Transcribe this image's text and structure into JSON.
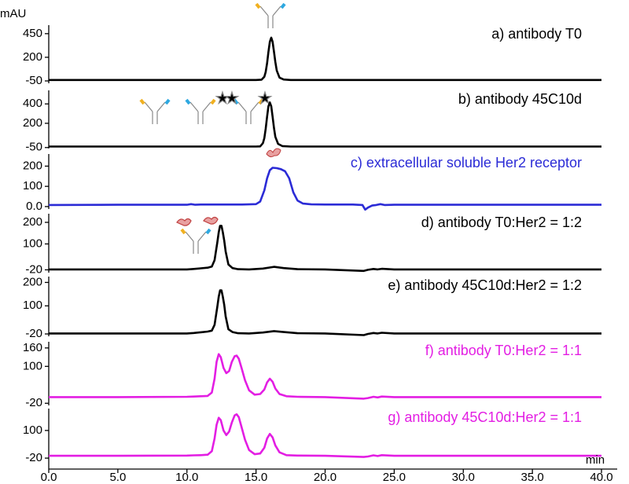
{
  "chart_data": [
    {
      "type": "line",
      "title": "a) antibody T0",
      "ylabel": "mAU",
      "color": "#000000",
      "ylim": [
        -75,
        540
      ],
      "yticks": [
        -50,
        200,
        450
      ],
      "x": [
        0,
        5,
        10,
        14,
        15,
        15.4,
        15.6,
        15.7,
        15.8,
        15.9,
        16.0,
        16.1,
        16.2,
        16.3,
        16.4,
        16.5,
        16.7,
        17,
        17.5,
        20,
        25,
        30,
        35,
        40
      ],
      "values": [
        -40,
        -40,
        -40,
        -40,
        -40,
        -37,
        -6,
        45,
        137,
        257,
        364,
        408,
        364,
        257,
        150,
        60,
        -15,
        -35,
        -40,
        -40,
        -40,
        -40,
        -40,
        -40
      ]
    },
    {
      "type": "line",
      "title": "b) antibody 45C10d",
      "color": "#000000",
      "ylim": [
        -60,
        540
      ],
      "yticks": [
        -50,
        200,
        400
      ],
      "x": [
        0,
        5,
        10,
        14,
        15,
        15.3,
        15.5,
        15.6,
        15.7,
        15.8,
        15.9,
        16.0,
        16.1,
        16.2,
        16.3,
        16.4,
        16.6,
        16.9,
        17.5,
        20,
        25,
        30,
        35,
        40
      ],
      "values": [
        -40,
        -40,
        -40,
        -40,
        -40,
        -38,
        -5,
        47,
        143,
        268,
        375,
        415,
        375,
        268,
        150,
        60,
        -12,
        -35,
        -40,
        -40,
        -40,
        -40,
        -40,
        -40
      ]
    },
    {
      "type": "line",
      "title": "c) extracellular soluble Her2 receptor",
      "color": "#2b2bd6",
      "ylim": [
        -12,
        260
      ],
      "yticks": [
        {
          "value": 0,
          "label": "0.0"
        },
        100,
        200
      ],
      "x": [
        0,
        5,
        10,
        10.3,
        10.6,
        11,
        14,
        15,
        15.3,
        15.6,
        15.8,
        16.0,
        16.2,
        16.5,
        16.8,
        17.1,
        17.4,
        17.7,
        18,
        18.4,
        19,
        20,
        22,
        22.7,
        22.9,
        23.1,
        23.4,
        23.7,
        24,
        24.3,
        25,
        30,
        35,
        40
      ],
      "values": [
        8,
        9,
        9,
        12,
        9,
        10,
        10,
        12,
        25,
        80,
        140,
        180,
        192,
        190,
        185,
        175,
        140,
        70,
        30,
        15,
        11,
        10,
        10,
        8,
        -15,
        -5,
        5,
        8,
        12,
        8,
        9,
        9,
        9,
        9
      ]
    },
    {
      "type": "line",
      "title": "d) antibody T0:Her2 = 1:2",
      "color": "#000000",
      "ylim": [
        -33,
        240
      ],
      "yticks": [
        -20,
        100,
        200
      ],
      "x": [
        0,
        5,
        10,
        10.5,
        11,
        11.5,
        11.8,
        12.0,
        12.2,
        12.3,
        12.4,
        12.5,
        12.6,
        12.7,
        12.8,
        13.0,
        13.3,
        13.7,
        14.5,
        15.5,
        16.3,
        17,
        18,
        20,
        22.8,
        23.1,
        23.5,
        23.8,
        24.1,
        25,
        30,
        35,
        40
      ],
      "values": [
        -18,
        -18,
        -18,
        -16,
        -13,
        -10,
        -5,
        25,
        107,
        154,
        184,
        184,
        154,
        115,
        65,
        5,
        -12,
        -17,
        -18,
        -14,
        -6,
        -12,
        -17,
        -18,
        -25,
        -20,
        -16,
        -18,
        -15,
        -18,
        -18,
        -18,
        -18
      ]
    },
    {
      "type": "line",
      "title": "e) antibody 45C10d:Her2 = 1:2",
      "color": "#000000",
      "ylim": [
        -30,
        225
      ],
      "yticks": [
        -20,
        100,
        200
      ],
      "x": [
        0,
        5,
        10,
        10.5,
        11,
        11.5,
        11.8,
        12.0,
        12.2,
        12.3,
        12.4,
        12.5,
        12.6,
        12.7,
        12.8,
        13.0,
        13.3,
        13.7,
        14.5,
        15.5,
        16.3,
        17,
        18,
        20,
        22.8,
        23.1,
        23.5,
        23.8,
        24.1,
        25,
        30,
        35,
        40
      ],
      "values": [
        -18,
        -18,
        -18,
        -16,
        -13,
        -10,
        -6,
        19,
        96,
        139,
        166,
        166,
        139,
        104,
        55,
        0,
        -12,
        -17,
        -18,
        -14,
        -8,
        -12,
        -17,
        -18,
        -25,
        -20,
        -16,
        -18,
        -15,
        -18,
        -18,
        -18,
        -18
      ]
    },
    {
      "type": "line",
      "title": "f) antibody T0:Her2 = 1:1",
      "color": "#e31ee3",
      "ylim": [
        -27,
        180
      ],
      "yticks": [
        -20,
        100,
        160
      ],
      "x": [
        0,
        5,
        10,
        10.5,
        11,
        11.5,
        11.8,
        12.0,
        12.15,
        12.3,
        12.45,
        12.65,
        12.85,
        13.05,
        13.25,
        13.45,
        13.6,
        13.75,
        13.95,
        14.2,
        14.5,
        14.9,
        15.3,
        15.6,
        15.8,
        16.0,
        16.2,
        16.4,
        16.7,
        17.2,
        18,
        20,
        22.8,
        23.1,
        23.5,
        23.8,
        24.1,
        25,
        30,
        35,
        40
      ],
      "values": [
        0,
        0,
        1,
        2,
        3,
        4,
        15,
        60,
        115,
        140,
        130,
        95,
        78,
        85,
        115,
        133,
        135,
        125,
        95,
        55,
        22,
        8,
        10,
        25,
        48,
        60,
        50,
        28,
        10,
        3,
        1,
        0,
        -5,
        -3,
        1,
        -1,
        2,
        0,
        0,
        0,
        0
      ]
    },
    {
      "type": "line",
      "title": "g) antibody 45C10d:Her2 = 1:1",
      "color": "#e31ee3",
      "ylim": [
        -30,
        195
      ],
      "yticks": [
        -20,
        100
      ],
      "xlabel": "min",
      "xlim": [
        0,
        40
      ],
      "xticks": [
        {
          "value": 0,
          "label": "0.0"
        },
        {
          "value": 5,
          "label": "5.0"
        },
        {
          "value": 10,
          "label": "10.0"
        },
        {
          "value": 15,
          "label": "15.0"
        },
        {
          "value": 20,
          "label": "20.0"
        },
        {
          "value": 25,
          "label": "25.0"
        },
        {
          "value": 30,
          "label": "30.0"
        },
        {
          "value": 35,
          "label": "35.0"
        },
        {
          "value": 40,
          "label": "40.0"
        }
      ],
      "x": [
        0,
        5,
        10,
        10.5,
        11,
        11.5,
        11.8,
        12.0,
        12.15,
        12.3,
        12.45,
        12.65,
        12.85,
        13.05,
        13.25,
        13.45,
        13.6,
        13.75,
        13.95,
        14.2,
        14.5,
        14.9,
        15.3,
        15.6,
        15.8,
        16.0,
        16.2,
        16.4,
        16.7,
        17.2,
        18,
        20,
        22.8,
        23.1,
        23.5,
        23.8,
        24.1,
        25,
        30,
        35,
        40
      ],
      "values": [
        -10,
        -10,
        -9,
        -8,
        -7,
        -5,
        10,
        65,
        125,
        155,
        145,
        100,
        80,
        95,
        135,
        165,
        170,
        158,
        115,
        60,
        15,
        -3,
        0,
        25,
        65,
        85,
        70,
        35,
        5,
        -7,
        -9,
        -10,
        -15,
        -13,
        -8,
        -11,
        -7,
        -10,
        -10,
        -10,
        -10
      ]
    }
  ]
}
